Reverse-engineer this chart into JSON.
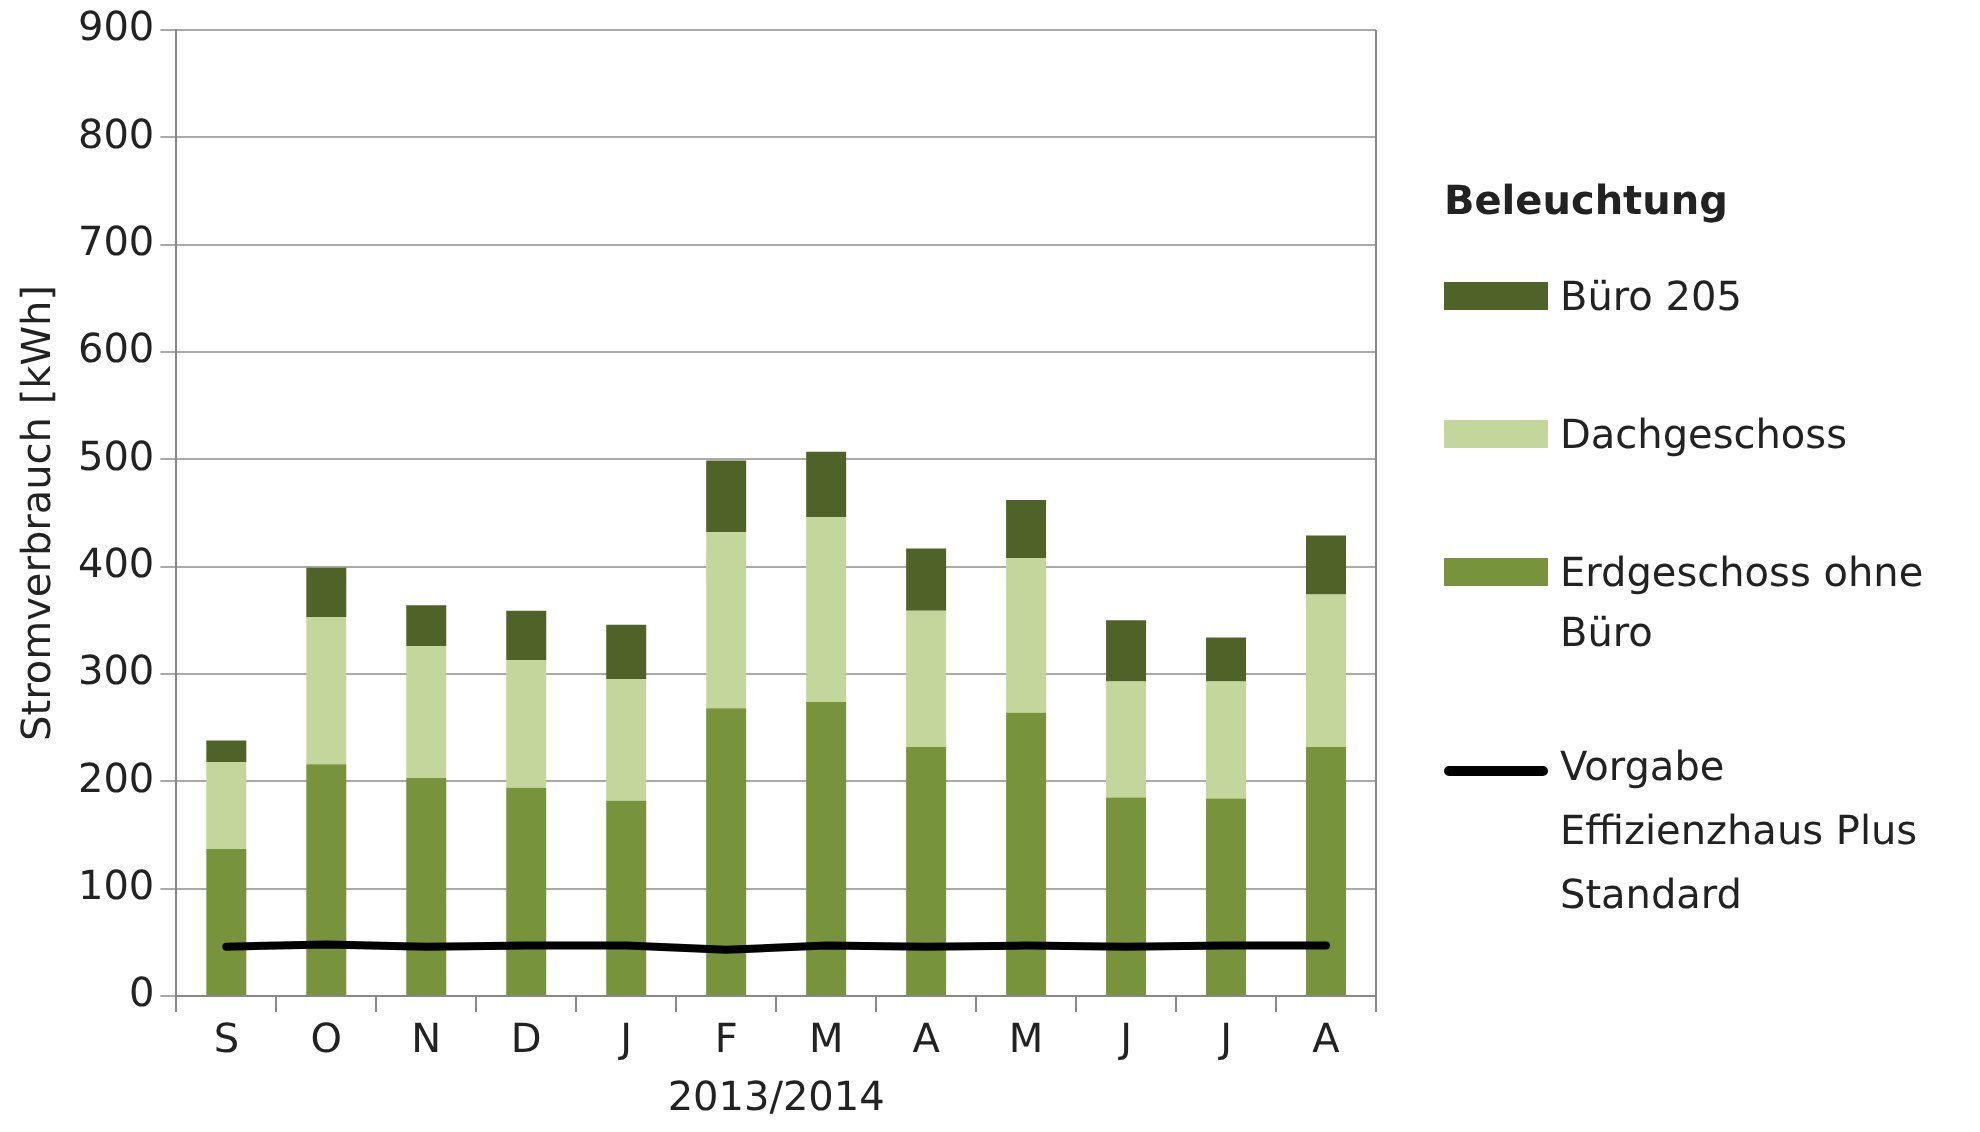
{
  "chart_data": {
    "type": "bar",
    "stacked": true,
    "xlabel": "2013/2014",
    "ylabel": "Stromverbrauch [kWh]",
    "legend_title": "Beleuchtung",
    "legend": "right",
    "grid": "y",
    "categories": [
      "S",
      "O",
      "N",
      "D",
      "J",
      "F",
      "M",
      "A",
      "M",
      "J",
      "J",
      "A"
    ],
    "ylim": [
      0,
      900
    ],
    "yticks": [
      0,
      100,
      200,
      300,
      400,
      500,
      600,
      700,
      800,
      900
    ],
    "series": [
      {
        "name": "Erdgeschoss ohne Büro",
        "color": "#77933c",
        "values": [
          137,
          216,
          203,
          194,
          182,
          268,
          274,
          232,
          264,
          185,
          184,
          232
        ]
      },
      {
        "name": "Dachgeschoss",
        "color": "#c3d69b",
        "values": [
          81,
          137,
          123,
          119,
          113,
          164,
          172,
          127,
          144,
          108,
          109,
          142
        ]
      },
      {
        "name": "Büro 205",
        "color": "#4f6228",
        "values": [
          20,
          46,
          38,
          46,
          51,
          67,
          61,
          58,
          54,
          57,
          41,
          55
        ]
      },
      {
        "name": "Vorgabe Effizienzhaus Plus Standard",
        "type": "line",
        "color": "#000000",
        "marker": "none",
        "values": [
          46,
          48,
          46,
          47,
          47,
          43,
          47,
          46,
          47,
          46,
          47,
          47
        ]
      }
    ]
  }
}
